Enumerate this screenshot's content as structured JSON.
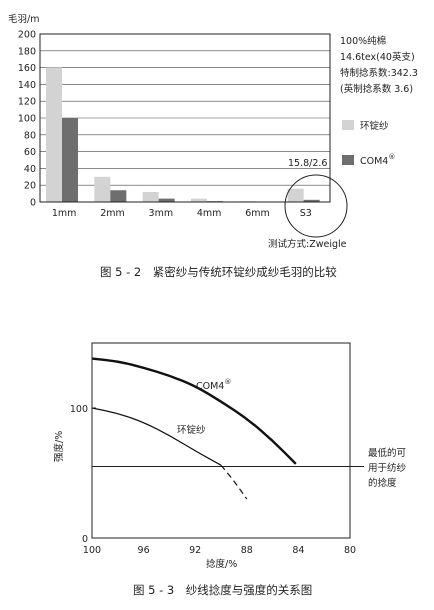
{
  "figure1": {
    "caption": "图 5 - 2　紧密纱与传统环锭纱成纱毛羽的比较",
    "ylabel": "毛羽/m",
    "notes": [
      "100%纯棉",
      "14.6tex(40英支)",
      "特制捻系数:342.3",
      "(英制捻系数 3.6)"
    ],
    "annotation": "15.8/2.6",
    "test_method": "测试方式:Zweigle",
    "legend": [
      {
        "label": "环锭纱",
        "color": "#d3d3d3"
      },
      {
        "label": "COM4",
        "sup": "®",
        "color": "#6e6e6e"
      }
    ]
  },
  "figure2": {
    "caption": "图 5 - 3　纱线捻度与强度的关系图",
    "ylabel": "强度/%",
    "xlabel": "捻度/%",
    "threshold_label": [
      "最低的可",
      "用于纺纱",
      "的捻度"
    ],
    "com4_label": "COM4",
    "com4_sup": "®",
    "ring_label": "环锭纱"
  },
  "chart_data": [
    {
      "type": "bar",
      "ylim": [
        0,
        200
      ],
      "yticks": [
        0,
        20,
        40,
        60,
        80,
        100,
        120,
        140,
        160,
        180,
        200
      ],
      "categories": [
        "1mm",
        "2mm",
        "3mm",
        "4mm",
        "6mm",
        "S3"
      ],
      "series": [
        {
          "name": "环锭纱",
          "color": "#d3d3d3",
          "values": [
            160,
            30,
            12,
            4,
            1,
            15.8
          ]
        },
        {
          "name": "COM4",
          "color": "#6e6e6e",
          "values": [
            100,
            14,
            4,
            1,
            0.5,
            2.6
          ]
        }
      ],
      "legend_position": "right",
      "grid": true
    },
    {
      "type": "line",
      "x_reversed": true,
      "xlim": [
        100,
        80
      ],
      "xticks": [
        100,
        96,
        92,
        88,
        84,
        80
      ],
      "ylim": [
        0,
        150
      ],
      "yticks": [
        0,
        100
      ],
      "threshold": 55,
      "series": [
        {
          "name": "COM4",
          "style": "solid-thick",
          "points": [
            [
              100,
              138
            ],
            [
              98,
              136
            ],
            [
              96,
              131
            ],
            [
              94,
              125
            ],
            [
              92,
              117
            ],
            [
              90,
              105
            ],
            [
              88,
              92
            ],
            [
              86,
              75
            ],
            [
              84.2,
              57
            ]
          ]
        },
        {
          "name": "环锭纱",
          "style": "solid",
          "points": [
            [
              100,
              100
            ],
            [
              98,
              96
            ],
            [
              96,
              89
            ],
            [
              94,
              79
            ],
            [
              92,
              67
            ],
            [
              90,
              56
            ]
          ]
        },
        {
          "name": "环锭纱",
          "style": "dashed",
          "points": [
            [
              90,
              56
            ],
            [
              89,
              44
            ],
            [
              88,
              30
            ]
          ]
        }
      ]
    }
  ]
}
